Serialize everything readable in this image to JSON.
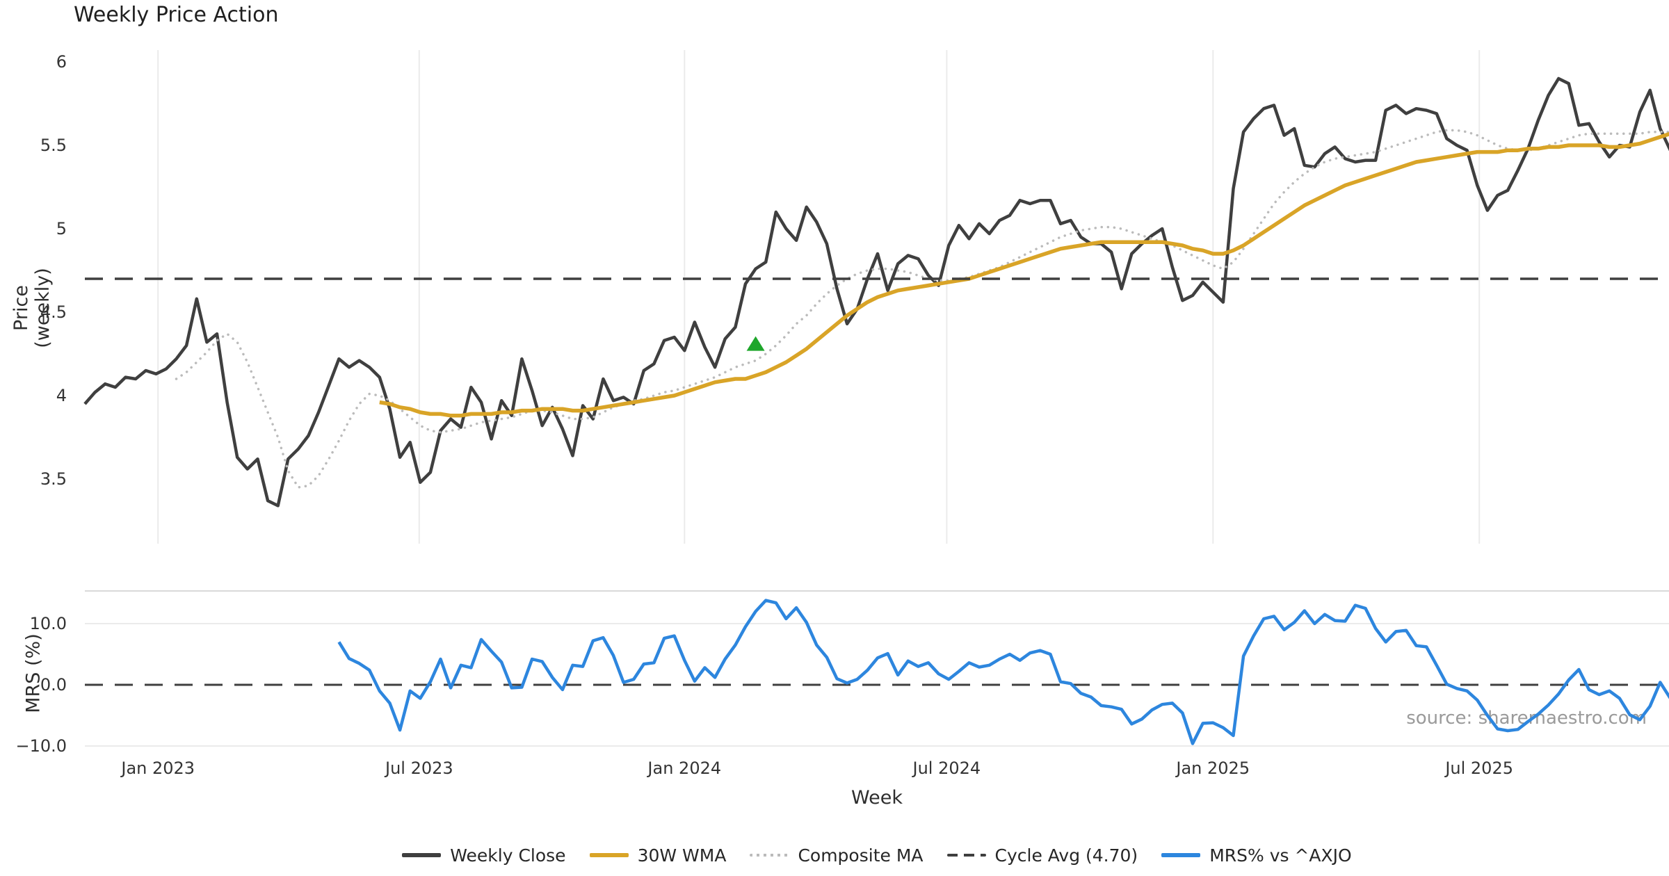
{
  "title": "Weekly Price Action",
  "source": "source: sharemaestro.com",
  "colors": {
    "close": "#3f3f3f",
    "wma30": "#d9a427",
    "composite": "#bbbbbb",
    "cycle_avg": "#3f3f3f",
    "mrs": "#2d86de",
    "buy_marker": "#1ea62b",
    "gridline": "#ebebeb",
    "panel_border": "#d9d9d9",
    "tick_text": "#333333",
    "source_text": "#9a9a9a"
  },
  "legend": [
    {
      "label": "Weekly Close",
      "swatch": "solid",
      "color": "#3f3f3f"
    },
    {
      "label": "30W WMA",
      "swatch": "solid",
      "color": "#d9a427"
    },
    {
      "label": "Composite MA",
      "swatch": "dotted",
      "color": "#bbbbbb"
    },
    {
      "label": "Cycle Avg (4.70)",
      "swatch": "dashed",
      "color": "#3f3f3f"
    },
    {
      "label": "MRS% vs ^AXJO",
      "swatch": "solid",
      "color": "#2d86de"
    }
  ],
  "chart_data": {
    "type": "line",
    "title": "Weekly Price Action",
    "xlabel": "Week",
    "x_unit": "weekly index, week 0 = mid-Nov 2022, 157 weeks to Nov 2025",
    "xticks": [
      {
        "label": "Jan 2023",
        "week": 7.2
      },
      {
        "label": "Jul 2023",
        "week": 32.9
      },
      {
        "label": "Jan 2024",
        "week": 59.0
      },
      {
        "label": "Jul 2024",
        "week": 84.8
      },
      {
        "label": "Jan 2025",
        "week": 111.0
      },
      {
        "label": "Jul 2025",
        "week": 137.2
      }
    ],
    "panels": [
      {
        "ylabel": "Price (weekly)",
        "ylim": [
          3.1,
          6.1
        ],
        "grid": "vertical-only",
        "yticks": [
          {
            "label": "6",
            "value": 6
          },
          {
            "label": "5.5",
            "value": 5.5
          },
          {
            "label": "5",
            "value": 5
          },
          {
            "label": "4.5",
            "value": 4.5
          },
          {
            "label": "4",
            "value": 4
          },
          {
            "label": "3.5",
            "value": 3.5
          }
        ]
      },
      {
        "ylabel": "MRS (%)",
        "ylim": [
          -11.4,
          15.3
        ],
        "grid": "horizontal-only",
        "yticks": [
          {
            "label": "10.0",
            "value": 10
          },
          {
            "label": "0.0",
            "value": 0
          },
          {
            "label": "−10.0",
            "value": -10
          }
        ]
      }
    ],
    "series": [
      {
        "id": "weekly-close",
        "name": "Weekly Close",
        "panel": 0,
        "color": "#3f3f3f",
        "width": 4.5,
        "style": "solid",
        "start_week": 0,
        "values": [
          3.95,
          4.02,
          4.07,
          4.05,
          4.11,
          4.1,
          4.15,
          4.13,
          4.16,
          4.22,
          4.3,
          4.58,
          4.32,
          4.37,
          3.96,
          3.63,
          3.56,
          3.62,
          3.37,
          3.34,
          3.62,
          3.68,
          3.76,
          3.9,
          4.06,
          4.22,
          4.17,
          4.21,
          4.17,
          4.11,
          3.92,
          3.63,
          3.72,
          3.48,
          3.54,
          3.79,
          3.86,
          3.81,
          4.05,
          3.96,
          3.74,
          3.97,
          3.88,
          4.22,
          4.03,
          3.82,
          3.93,
          3.8,
          3.64,
          3.94,
          3.86,
          4.1,
          3.97,
          3.99,
          3.95,
          4.15,
          4.19,
          4.33,
          4.35,
          4.27,
          4.44,
          4.29,
          4.17,
          4.34,
          4.41,
          4.67,
          4.76,
          4.8,
          5.1,
          5.0,
          4.93,
          5.13,
          5.04,
          4.91,
          4.64,
          4.43,
          4.52,
          4.7,
          4.85,
          4.63,
          4.79,
          4.84,
          4.82,
          4.72,
          4.66,
          4.9,
          5.02,
          4.94,
          5.03,
          4.97,
          5.05,
          5.08,
          5.17,
          5.15,
          5.17,
          5.17,
          5.03,
          5.05,
          4.95,
          4.91,
          4.91,
          4.86,
          4.64,
          4.85,
          4.91,
          4.96,
          5.0,
          4.77,
          4.57,
          4.6,
          4.68,
          4.62,
          4.56,
          5.24,
          5.58,
          5.66,
          5.72,
          5.74,
          5.56,
          5.6,
          5.38,
          5.37,
          5.45,
          5.49,
          5.42,
          5.4,
          5.41,
          5.41,
          5.71,
          5.74,
          5.69,
          5.72,
          5.71,
          5.69,
          5.54,
          5.5,
          5.47,
          5.26,
          5.11,
          5.2,
          5.23,
          5.35,
          5.48,
          5.65,
          5.8,
          5.9,
          5.87,
          5.62,
          5.63,
          5.52,
          5.43,
          5.5,
          5.49,
          5.7,
          5.83,
          5.6,
          5.47
        ]
      },
      {
        "id": "composite-ma",
        "name": "Composite MA",
        "panel": 0,
        "color": "#bbbbbb",
        "width": 3.5,
        "style": "dotted",
        "start_week": 9,
        "values": [
          4.1,
          4.14,
          4.2,
          4.26,
          4.33,
          4.37,
          4.32,
          4.2,
          4.05,
          3.9,
          3.75,
          3.55,
          3.45,
          3.46,
          3.52,
          3.62,
          3.73,
          3.85,
          3.95,
          4.01,
          4.0,
          3.97,
          3.92,
          3.87,
          3.82,
          3.79,
          3.78,
          3.79,
          3.8,
          3.82,
          3.84,
          3.85,
          3.86,
          3.87,
          3.89,
          3.91,
          3.91,
          3.9,
          3.88,
          3.86,
          3.86,
          3.87,
          3.9,
          3.93,
          3.95,
          3.97,
          3.98,
          4.0,
          4.02,
          4.03,
          4.05,
          4.07,
          4.09,
          4.11,
          4.14,
          4.17,
          4.19,
          4.21,
          4.25,
          4.3,
          4.36,
          4.43,
          4.48,
          4.55,
          4.61,
          4.66,
          4.7,
          4.73,
          4.75,
          4.76,
          4.76,
          4.75,
          4.74,
          4.72,
          4.7,
          4.69,
          4.69,
          4.7,
          4.71,
          4.73,
          4.75,
          4.77,
          4.8,
          4.83,
          4.86,
          4.89,
          4.92,
          4.95,
          4.97,
          4.99,
          5.0,
          5.01,
          5.01,
          5.0,
          4.98,
          4.96,
          4.94,
          4.92,
          4.9,
          4.87,
          4.84,
          4.81,
          4.78,
          4.76,
          4.8,
          4.88,
          4.97,
          5.06,
          5.15,
          5.22,
          5.28,
          5.33,
          5.37,
          5.4,
          5.42,
          5.43,
          5.44,
          5.45,
          5.46,
          5.48,
          5.5,
          5.52,
          5.54,
          5.56,
          5.58,
          5.59,
          5.59,
          5.58,
          5.56,
          5.53,
          5.5,
          5.48,
          5.47,
          5.47,
          5.48,
          5.5,
          5.52,
          5.54,
          5.56,
          5.57,
          5.57,
          5.57,
          5.57,
          5.57,
          5.57,
          5.58,
          5.58,
          5.58,
          5.58
        ]
      },
      {
        "id": "wma-30w",
        "name": "30W WMA",
        "panel": 0,
        "color": "#d9a427",
        "width": 5.5,
        "style": "solid",
        "start_week": 29,
        "values": [
          3.96,
          3.95,
          3.93,
          3.92,
          3.9,
          3.89,
          3.89,
          3.88,
          3.88,
          3.89,
          3.89,
          3.89,
          3.9,
          3.9,
          3.91,
          3.91,
          3.92,
          3.92,
          3.92,
          3.91,
          3.91,
          3.92,
          3.93,
          3.94,
          3.95,
          3.96,
          3.97,
          3.98,
          3.99,
          4.0,
          4.02,
          4.04,
          4.06,
          4.08,
          4.09,
          4.1,
          4.1,
          4.12,
          4.14,
          4.17,
          4.2,
          4.24,
          4.28,
          4.33,
          4.38,
          4.43,
          4.48,
          4.52,
          4.56,
          4.59,
          4.61,
          4.63,
          4.64,
          4.65,
          4.66,
          4.67,
          4.68,
          4.69,
          4.7,
          4.72,
          4.74,
          4.76,
          4.78,
          4.8,
          4.82,
          4.84,
          4.86,
          4.88,
          4.89,
          4.9,
          4.91,
          4.92,
          4.92,
          4.92,
          4.92,
          4.92,
          4.92,
          4.92,
          4.91,
          4.9,
          4.88,
          4.87,
          4.85,
          4.85,
          4.87,
          4.9,
          4.94,
          4.98,
          5.02,
          5.06,
          5.1,
          5.14,
          5.17,
          5.2,
          5.23,
          5.26,
          5.28,
          5.3,
          5.32,
          5.34,
          5.36,
          5.38,
          5.4,
          5.41,
          5.42,
          5.43,
          5.44,
          5.45,
          5.46,
          5.46,
          5.46,
          5.47,
          5.47,
          5.48,
          5.48,
          5.49,
          5.49,
          5.5,
          5.5,
          5.5,
          5.5,
          5.49,
          5.49,
          5.5,
          5.51,
          5.53,
          5.55,
          5.57
        ]
      },
      {
        "id": "cycle-avg",
        "name": "Cycle Avg (4.70)",
        "panel": 0,
        "color": "#3f3f3f",
        "width": 3.5,
        "style": "dashed",
        "constant": 4.7
      },
      {
        "id": "zero-line",
        "name": "MRS zero line",
        "panel": 1,
        "color": "#3f3f3f",
        "width": 3,
        "style": "dashed",
        "constant": 0
      },
      {
        "id": "mrs",
        "name": "MRS% vs ^AXJO",
        "panel": 1,
        "color": "#2d86de",
        "width": 4.5,
        "style": "solid",
        "start_week": 25,
        "values": [
          7.0,
          4.3,
          3.5,
          2.4,
          -1.0,
          -3.0,
          -7.4,
          -1.0,
          -2.2,
          0.5,
          4.2,
          -0.5,
          3.2,
          2.8,
          7.4,
          5.5,
          3.7,
          -0.5,
          -0.4,
          4.2,
          3.8,
          1.2,
          -0.8,
          3.2,
          3.0,
          7.2,
          7.7,
          4.8,
          0.4,
          0.9,
          3.4,
          3.6,
          7.6,
          8.0,
          4.0,
          0.6,
          2.8,
          1.2,
          4.2,
          6.5,
          9.5,
          12.0,
          13.8,
          13.4,
          10.8,
          12.6,
          10.2,
          6.5,
          4.5,
          1.0,
          0.3,
          0.9,
          2.4,
          4.4,
          5.1,
          1.6,
          3.9,
          3.0,
          3.6,
          1.8,
          0.9,
          2.2,
          3.6,
          2.9,
          3.2,
          4.2,
          5.0,
          4.0,
          5.2,
          5.6,
          5.0,
          0.5,
          0.2,
          -1.4,
          -2.0,
          -3.4,
          -3.6,
          -4.0,
          -6.4,
          -5.6,
          -4.1,
          -3.2,
          -3.0,
          -4.6,
          -9.6,
          -6.3,
          -6.2,
          -7.0,
          -8.3,
          4.7,
          8.0,
          10.8,
          11.2,
          9.0,
          10.2,
          12.1,
          10.0,
          11.5,
          10.5,
          10.4,
          13.0,
          12.5,
          9.2,
          7.0,
          8.7,
          8.9,
          6.4,
          6.2,
          3.2,
          0.1,
          -0.6,
          -1.0,
          -2.5,
          -5.0,
          -7.2,
          -7.5,
          -7.3,
          -6.0,
          -4.8,
          -3.3,
          -1.5,
          0.8,
          2.5,
          -0.8,
          -1.6,
          -1.0,
          -2.2,
          -4.9,
          -5.7,
          -3.5,
          0.4,
          -2.2
        ]
      }
    ],
    "markers": [
      {
        "name": "buy-signal-triangle",
        "shape": "triangle-up",
        "color": "#1ea62b",
        "week": 66,
        "value": 4.31
      }
    ],
    "legend_position": "bottom-center"
  }
}
